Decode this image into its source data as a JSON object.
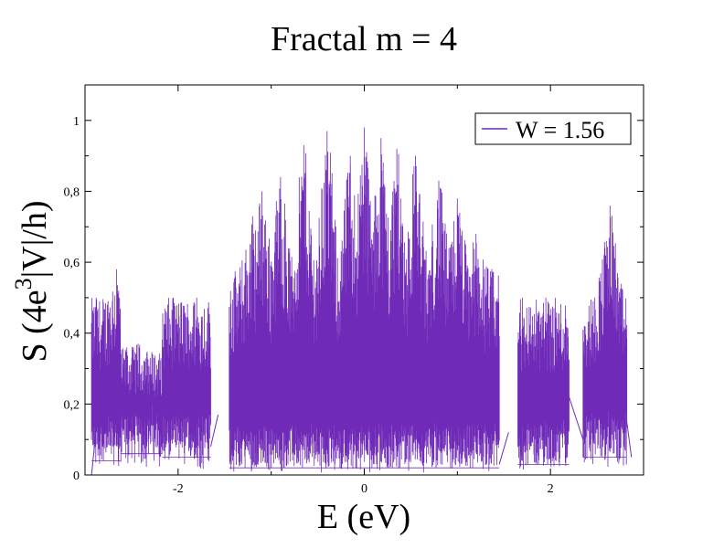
{
  "chart_data": {
    "type": "line",
    "title": "Fractal m = 4",
    "xlabel": "E (eV)",
    "ylabel": {
      "prefix": "S (4e",
      "superscript": "3",
      "suffix": "|V|/h)"
    },
    "xlim": [
      -3.0,
      3.0
    ],
    "ylim": [
      0,
      1.1
    ],
    "x_ticks": [
      -2,
      0,
      2
    ],
    "x_tick_labels": [
      "-2",
      "0",
      "2"
    ],
    "y_ticks": [
      0,
      0.2,
      0.4,
      0.6,
      0.8,
      1.0
    ],
    "y_tick_labels": [
      "0",
      "0,2",
      "0,4",
      "0,6",
      "0,8",
      "1"
    ],
    "grid": false,
    "legend_position": "top-right",
    "series": [
      {
        "name": "W = 1.56",
        "color": "#6f2ab8",
        "bands": [
          {
            "x": [
              -2.93,
              -2.62
            ],
            "low": 0.04,
            "high": 0.5,
            "peaks": [
              [
                -2.66,
                0.58
              ],
              [
                -2.88,
                0.5
              ]
            ]
          },
          {
            "x": [
              -2.62,
              -2.17
            ],
            "low": 0.06,
            "high": 0.35,
            "peaks": [
              [
                -2.55,
                0.36
              ],
              [
                -2.43,
                0.37
              ],
              [
                -2.3,
                0.33
              ]
            ]
          },
          {
            "x": [
              -2.17,
              -1.65
            ],
            "low": 0.05,
            "high": 0.5,
            "peaks": [
              [
                -2.05,
                0.5
              ],
              [
                -1.8,
                0.5
              ]
            ]
          },
          {
            "x": [
              -1.45,
              1.45
            ],
            "low": 0.02,
            "high": 0.58,
            "peaks": [
              [
                -1.2,
                0.73
              ],
              [
                -1.1,
                0.8
              ],
              [
                -0.9,
                0.84
              ],
              [
                -0.65,
                0.93
              ],
              [
                -0.4,
                0.97
              ],
              [
                -0.15,
                0.9
              ],
              [
                0.0,
                0.98
              ],
              [
                0.18,
                0.95
              ],
              [
                0.35,
                0.92
              ],
              [
                0.55,
                0.9
              ],
              [
                0.8,
                0.83
              ],
              [
                1.0,
                0.78
              ],
              [
                1.2,
                0.68
              ]
            ]
          },
          {
            "x": [
              1.65,
              2.2
            ],
            "low": 0.03,
            "high": 0.5,
            "peaks": [
              [
                1.7,
                0.5
              ],
              [
                1.95,
                0.5
              ],
              [
                2.1,
                0.35
              ]
            ]
          },
          {
            "x": [
              2.35,
              2.82
            ],
            "low": 0.05,
            "high": 0.5,
            "peaks": [
              [
                2.6,
                0.66
              ],
              [
                2.64,
                0.76
              ],
              [
                2.7,
                0.55
              ]
            ]
          }
        ],
        "bridges": [
          {
            "x": [
              -2.93,
              -2.86
            ],
            "y": [
              0.0,
              0.18
            ]
          },
          {
            "x": [
              -1.65,
              -1.57
            ],
            "y": [
              0.08,
              0.17
            ]
          },
          {
            "x": [
              1.45,
              1.55
            ],
            "y": [
              0.03,
              0.12
            ]
          },
          {
            "x": [
              2.2,
              2.35
            ],
            "y": [
              0.22,
              0.1
            ]
          },
          {
            "x": [
              2.82,
              2.87
            ],
            "y": [
              0.15,
              0.05
            ]
          }
        ]
      }
    ]
  }
}
